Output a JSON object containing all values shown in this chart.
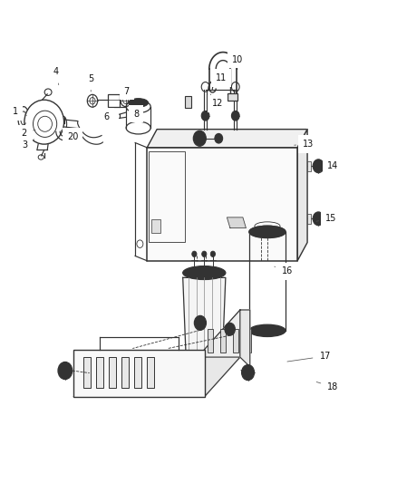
{
  "background_color": "#ffffff",
  "line_color": "#333333",
  "line_width": 0.85,
  "label_fontsize": 7.0,
  "label_positions": {
    "1": [
      0.038,
      0.77,
      0.072,
      0.76
    ],
    "2": [
      0.058,
      0.724,
      0.088,
      0.732
    ],
    "3": [
      0.062,
      0.7,
      0.085,
      0.712
    ],
    "4": [
      0.14,
      0.852,
      0.148,
      0.82
    ],
    "5": [
      0.228,
      0.838,
      0.228,
      0.806
    ],
    "6": [
      0.268,
      0.758,
      0.26,
      0.77
    ],
    "7": [
      0.318,
      0.812,
      0.314,
      0.795
    ],
    "8": [
      0.342,
      0.765,
      0.336,
      0.758
    ],
    "10": [
      0.598,
      0.878,
      0.582,
      0.862
    ],
    "11": [
      0.558,
      0.84,
      0.546,
      0.826
    ],
    "12": [
      0.548,
      0.786,
      0.53,
      0.806
    ],
    "13": [
      0.778,
      0.702,
      0.742,
      0.7
    ],
    "14": [
      0.84,
      0.658,
      0.808,
      0.645
    ],
    "15": [
      0.835,
      0.548,
      0.798,
      0.542
    ],
    "16": [
      0.725,
      0.438,
      0.692,
      0.448
    ],
    "17": [
      0.82,
      0.262,
      0.718,
      0.25
    ],
    "18": [
      0.84,
      0.198,
      0.792,
      0.21
    ],
    "20": [
      0.182,
      0.718,
      0.168,
      0.725
    ]
  }
}
